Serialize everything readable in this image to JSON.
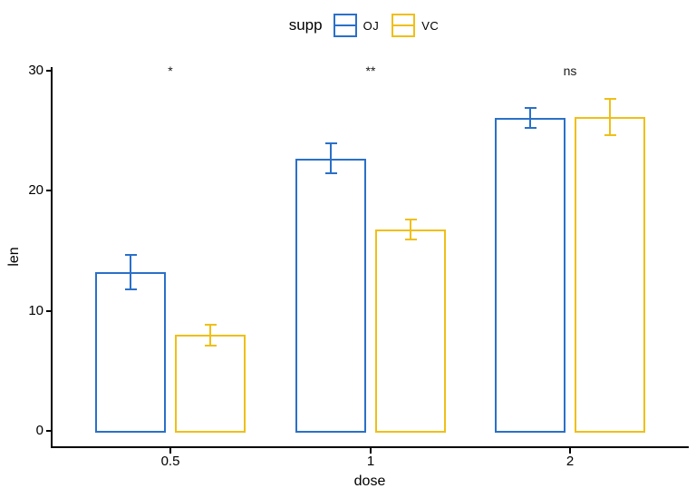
{
  "figure": {
    "background": "#ffffff"
  },
  "legend": {
    "title": "supp",
    "position": "top"
  },
  "chart_data": {
    "type": "bar",
    "title": "",
    "xlabel": "dose",
    "ylabel": "len",
    "categories": [
      "0.5",
      "1",
      "2"
    ],
    "series": [
      {
        "name": "OJ",
        "color": "#2a70c8",
        "values": [
          13.23,
          22.7,
          26.06
        ],
        "se": [
          1.41,
          1.24,
          0.84
        ]
      },
      {
        "name": "VC",
        "color": "#efbf18",
        "values": [
          7.98,
          16.77,
          26.14
        ],
        "se": [
          0.87,
          0.8,
          1.52
        ]
      }
    ],
    "error_bars": "mean ± standard error",
    "significance_labels": [
      "*",
      "**",
      "ns"
    ],
    "ylim": [
      0,
      30
    ],
    "y_ticks": [
      "0",
      "10",
      "20",
      "30"
    ],
    "grid": false,
    "bar_style": "outline",
    "bar_fill": "white",
    "legend_position": "top",
    "axis_color": "#000000",
    "text_color": "#000000"
  }
}
